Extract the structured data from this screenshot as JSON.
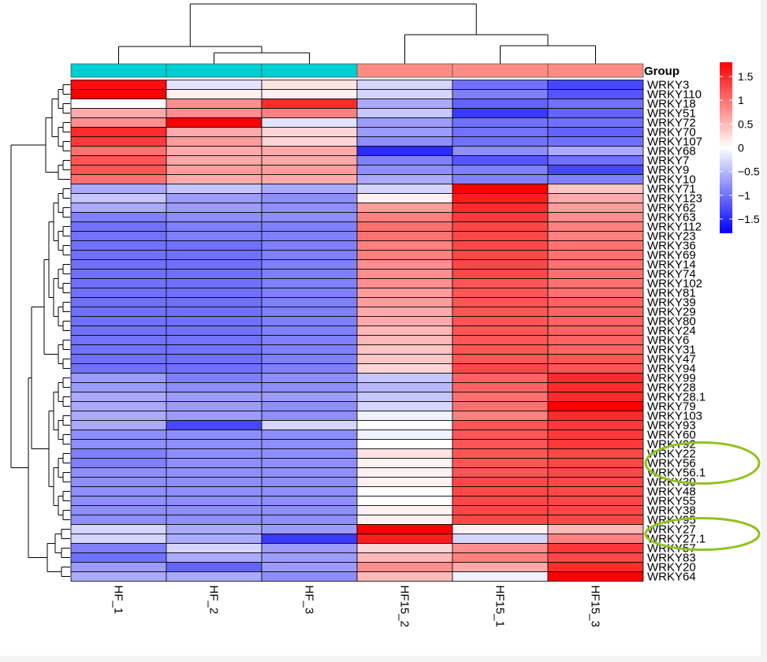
{
  "chart_data": {
    "type": "heatmap",
    "title": "",
    "columns": [
      "HF_1",
      "HF_2",
      "HF_3",
      "HF15_2",
      "HF15_1",
      "HF15_3"
    ],
    "annotation": {
      "title": "Group",
      "groups": [
        "g1",
        "g1",
        "g1",
        "g2",
        "g2",
        "g2"
      ],
      "colors": {
        "g1": "#00cfd1",
        "g2": "#fd8d84"
      }
    },
    "rows": [
      "WRKY3",
      "WRKY110",
      "WRKY18",
      "WRKY51",
      "WRKY72",
      "WRKY70",
      "WRKY107",
      "WRKY68",
      "WRKY7",
      "WRKY9",
      "WRKY10",
      "WRKY71",
      "WRKY123",
      "WRKY62",
      "WRKY63",
      "WRKY112",
      "WRKY23",
      "WRKY36",
      "WRKY69",
      "WRKY14",
      "WRKY74",
      "WRKY102",
      "WRKY81",
      "WRKY39",
      "WRKY29",
      "WRKY80",
      "WRKY24",
      "WRKY6",
      "WRKY31",
      "WRKY47",
      "WRKY94",
      "WRKY99",
      "WRKY28",
      "WRKY28.1",
      "WRKY79",
      "WRKY103",
      "WRKY93",
      "WRKY60",
      "WRKY92",
      "WRKY22",
      "WRKY56",
      "WRKY56.1",
      "WRKY30",
      "WRKY48",
      "WRKY55",
      "WRKY38",
      "WRKY95",
      "WRKY27",
      "WRKY27.1",
      "WRKY57",
      "WRKY83",
      "WRKY20",
      "WRKY64"
    ],
    "values": [
      [
        1.7,
        -0.2,
        0.2,
        -0.3,
        -1.0,
        -1.3
      ],
      [
        1.8,
        0.1,
        0.1,
        -0.3,
        -0.9,
        -1.2
      ],
      [
        0.0,
        0.8,
        1.5,
        -0.6,
        -1.1,
        -1.0
      ],
      [
        0.6,
        0.8,
        0.9,
        -0.4,
        -1.4,
        -1.1
      ],
      [
        0.8,
        1.9,
        -0.2,
        -0.7,
        -1.0,
        -1.0
      ],
      [
        1.5,
        0.6,
        0.3,
        -0.7,
        -1.0,
        -1.1
      ],
      [
        1.4,
        0.7,
        0.3,
        -0.8,
        -1.0,
        -1.0
      ],
      [
        1.0,
        0.6,
        0.6,
        -1.5,
        -0.8,
        -0.6
      ],
      [
        1.2,
        0.6,
        0.6,
        -0.9,
        -1.2,
        -1.0
      ],
      [
        1.2,
        0.7,
        0.7,
        -0.8,
        -0.9,
        -1.3
      ],
      [
        1.0,
        0.6,
        0.6,
        -0.6,
        -0.9,
        -0.9
      ],
      [
        -0.6,
        -0.4,
        -0.6,
        -0.3,
        1.8,
        0.4
      ],
      [
        -0.4,
        -0.7,
        -0.8,
        0.1,
        1.6,
        0.6
      ],
      [
        -0.6,
        -0.7,
        -0.8,
        0.7,
        1.5,
        0.7
      ],
      [
        -0.9,
        -0.8,
        -0.8,
        0.9,
        1.4,
        0.8
      ],
      [
        -1.0,
        -0.9,
        -0.9,
        1.0,
        1.3,
        0.9
      ],
      [
        -1.0,
        -0.9,
        -0.9,
        1.0,
        1.3,
        0.9
      ],
      [
        -1.0,
        -1.0,
        -0.9,
        0.9,
        1.3,
        1.0
      ],
      [
        -1.0,
        -1.0,
        -0.9,
        0.9,
        1.3,
        1.0
      ],
      [
        -1.0,
        -1.0,
        -0.9,
        0.8,
        1.3,
        1.0
      ],
      [
        -1.0,
        -1.0,
        -0.9,
        0.8,
        1.3,
        1.0
      ],
      [
        -1.0,
        -1.0,
        -0.9,
        0.8,
        1.2,
        1.0
      ],
      [
        -1.0,
        -1.0,
        -0.9,
        0.7,
        1.2,
        1.0
      ],
      [
        -1.0,
        -1.0,
        -0.9,
        0.7,
        1.2,
        1.1
      ],
      [
        -1.0,
        -1.0,
        -0.9,
        0.6,
        1.2,
        1.1
      ],
      [
        -1.0,
        -1.0,
        -0.9,
        0.6,
        1.2,
        1.1
      ],
      [
        -1.0,
        -1.0,
        -0.9,
        0.5,
        1.2,
        1.1
      ],
      [
        -1.0,
        -1.0,
        -0.9,
        0.5,
        1.2,
        1.1
      ],
      [
        -1.0,
        -1.0,
        -0.9,
        0.4,
        1.2,
        1.1
      ],
      [
        -1.0,
        -1.0,
        -0.9,
        0.4,
        1.2,
        1.2
      ],
      [
        -1.0,
        -1.0,
        -0.9,
        0.3,
        1.3,
        1.2
      ],
      [
        -0.7,
        -0.9,
        -0.8,
        -0.4,
        1.1,
        1.5
      ],
      [
        -0.7,
        -0.8,
        -0.8,
        -0.5,
        1.1,
        1.5
      ],
      [
        -0.6,
        -0.7,
        -0.7,
        -0.4,
        1.0,
        1.5
      ],
      [
        -0.6,
        -0.7,
        -0.8,
        -0.3,
        1.0,
        1.8
      ],
      [
        -0.6,
        -0.7,
        -0.8,
        -0.1,
        0.9,
        1.5
      ],
      [
        -0.6,
        -1.3,
        -0.3,
        0.0,
        1.2,
        1.4
      ],
      [
        -0.8,
        -0.8,
        -0.8,
        -0.1,
        1.2,
        1.4
      ],
      [
        -0.8,
        -0.8,
        -0.8,
        0.0,
        1.2,
        1.4
      ],
      [
        -0.9,
        -0.8,
        -0.8,
        0.2,
        1.2,
        1.3
      ],
      [
        -0.9,
        -0.8,
        -0.8,
        0.1,
        1.2,
        1.3
      ],
      [
        -0.8,
        -0.8,
        -0.8,
        0.1,
        1.2,
        1.3
      ],
      [
        -0.8,
        -0.8,
        -0.8,
        0.1,
        1.3,
        1.3
      ],
      [
        -0.8,
        -0.8,
        -0.8,
        0.0,
        1.3,
        1.3
      ],
      [
        -0.8,
        -0.8,
        -0.8,
        0.0,
        1.3,
        1.3
      ],
      [
        -0.8,
        -0.8,
        -0.8,
        0.1,
        1.3,
        1.3
      ],
      [
        -0.8,
        -0.8,
        -0.8,
        0.1,
        1.3,
        1.3
      ],
      [
        -0.3,
        -0.6,
        -0.7,
        1.8,
        0.1,
        0.5
      ],
      [
        -0.3,
        -0.6,
        -1.4,
        1.6,
        -0.3,
        0.9
      ],
      [
        -0.9,
        -0.3,
        -0.7,
        0.3,
        0.8,
        1.4
      ],
      [
        -1.0,
        -0.6,
        -0.7,
        0.5,
        0.9,
        1.3
      ],
      [
        -0.7,
        -1.1,
        -0.7,
        0.8,
        0.6,
        1.5
      ],
      [
        -0.6,
        -0.6,
        -0.8,
        0.5,
        -0.1,
        1.8
      ]
    ],
    "color_scale": {
      "min": -1.8,
      "max": 1.8,
      "low": "#0000ff",
      "mid": "#ffffff",
      "high": "#ff0000",
      "ticks": [
        "1.5",
        "1",
        "0.5",
        "0",
        "−0.5",
        "−1",
        "−1.5"
      ],
      "tick_values": [
        1.5,
        1,
        0.5,
        0,
        -0.5,
        -1,
        -1.5
      ]
    },
    "highlighted_rows": [
      [
        "WRKY22",
        "WRKY56",
        "WRKY56.1"
      ],
      [
        "WRKY27",
        "WRKY27.1"
      ]
    ],
    "highlight_color": "#8fc31f",
    "cluster_rows": true,
    "cluster_cols": true
  }
}
